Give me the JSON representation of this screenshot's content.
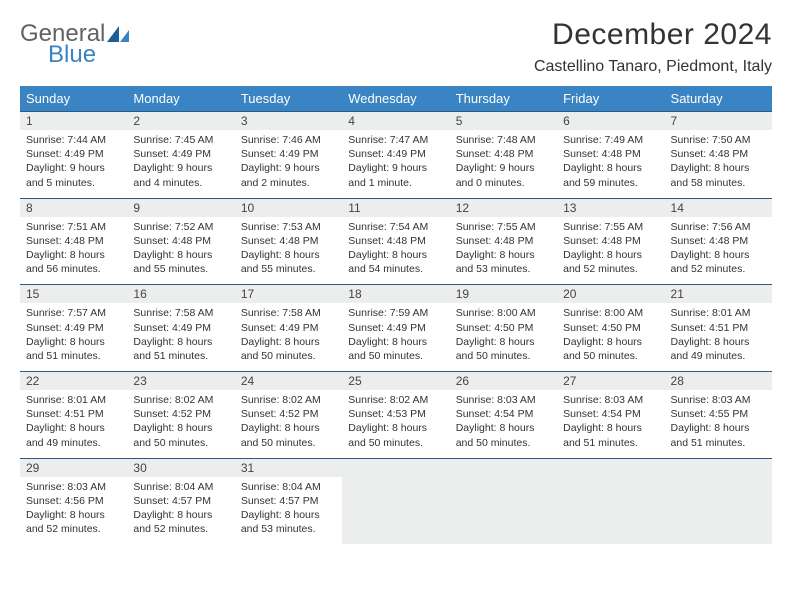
{
  "logo": {
    "word1": "General",
    "word2": "Blue"
  },
  "header": {
    "title": "December 2024",
    "location": "Castellino Tanaro, Piedmont, Italy"
  },
  "calendar": {
    "type": "table",
    "columns": [
      "Sunday",
      "Monday",
      "Tuesday",
      "Wednesday",
      "Thursday",
      "Friday",
      "Saturday"
    ],
    "header_bg": "#3a84c4",
    "header_fg": "#ffffff",
    "daynum_bg": "#eceded",
    "rule_color": "#2b5b82",
    "text_color": "#333333",
    "font_size_body": 10.5,
    "font_size_header": 13,
    "weeks": [
      [
        {
          "n": "1",
          "sunrise": "7:44 AM",
          "sunset": "4:49 PM",
          "dl": "9 hours and 5 minutes."
        },
        {
          "n": "2",
          "sunrise": "7:45 AM",
          "sunset": "4:49 PM",
          "dl": "9 hours and 4 minutes."
        },
        {
          "n": "3",
          "sunrise": "7:46 AM",
          "sunset": "4:49 PM",
          "dl": "9 hours and 2 minutes."
        },
        {
          "n": "4",
          "sunrise": "7:47 AM",
          "sunset": "4:49 PM",
          "dl": "9 hours and 1 minute."
        },
        {
          "n": "5",
          "sunrise": "7:48 AM",
          "sunset": "4:48 PM",
          "dl": "9 hours and 0 minutes."
        },
        {
          "n": "6",
          "sunrise": "7:49 AM",
          "sunset": "4:48 PM",
          "dl": "8 hours and 59 minutes."
        },
        {
          "n": "7",
          "sunrise": "7:50 AM",
          "sunset": "4:48 PM",
          "dl": "8 hours and 58 minutes."
        }
      ],
      [
        {
          "n": "8",
          "sunrise": "7:51 AM",
          "sunset": "4:48 PM",
          "dl": "8 hours and 56 minutes."
        },
        {
          "n": "9",
          "sunrise": "7:52 AM",
          "sunset": "4:48 PM",
          "dl": "8 hours and 55 minutes."
        },
        {
          "n": "10",
          "sunrise": "7:53 AM",
          "sunset": "4:48 PM",
          "dl": "8 hours and 55 minutes."
        },
        {
          "n": "11",
          "sunrise": "7:54 AM",
          "sunset": "4:48 PM",
          "dl": "8 hours and 54 minutes."
        },
        {
          "n": "12",
          "sunrise": "7:55 AM",
          "sunset": "4:48 PM",
          "dl": "8 hours and 53 minutes."
        },
        {
          "n": "13",
          "sunrise": "7:55 AM",
          "sunset": "4:48 PM",
          "dl": "8 hours and 52 minutes."
        },
        {
          "n": "14",
          "sunrise": "7:56 AM",
          "sunset": "4:48 PM",
          "dl": "8 hours and 52 minutes."
        }
      ],
      [
        {
          "n": "15",
          "sunrise": "7:57 AM",
          "sunset": "4:49 PM",
          "dl": "8 hours and 51 minutes."
        },
        {
          "n": "16",
          "sunrise": "7:58 AM",
          "sunset": "4:49 PM",
          "dl": "8 hours and 51 minutes."
        },
        {
          "n": "17",
          "sunrise": "7:58 AM",
          "sunset": "4:49 PM",
          "dl": "8 hours and 50 minutes."
        },
        {
          "n": "18",
          "sunrise": "7:59 AM",
          "sunset": "4:49 PM",
          "dl": "8 hours and 50 minutes."
        },
        {
          "n": "19",
          "sunrise": "8:00 AM",
          "sunset": "4:50 PM",
          "dl": "8 hours and 50 minutes."
        },
        {
          "n": "20",
          "sunrise": "8:00 AM",
          "sunset": "4:50 PM",
          "dl": "8 hours and 50 minutes."
        },
        {
          "n": "21",
          "sunrise": "8:01 AM",
          "sunset": "4:51 PM",
          "dl": "8 hours and 49 minutes."
        }
      ],
      [
        {
          "n": "22",
          "sunrise": "8:01 AM",
          "sunset": "4:51 PM",
          "dl": "8 hours and 49 minutes."
        },
        {
          "n": "23",
          "sunrise": "8:02 AM",
          "sunset": "4:52 PM",
          "dl": "8 hours and 50 minutes."
        },
        {
          "n": "24",
          "sunrise": "8:02 AM",
          "sunset": "4:52 PM",
          "dl": "8 hours and 50 minutes."
        },
        {
          "n": "25",
          "sunrise": "8:02 AM",
          "sunset": "4:53 PM",
          "dl": "8 hours and 50 minutes."
        },
        {
          "n": "26",
          "sunrise": "8:03 AM",
          "sunset": "4:54 PM",
          "dl": "8 hours and 50 minutes."
        },
        {
          "n": "27",
          "sunrise": "8:03 AM",
          "sunset": "4:54 PM",
          "dl": "8 hours and 51 minutes."
        },
        {
          "n": "28",
          "sunrise": "8:03 AM",
          "sunset": "4:55 PM",
          "dl": "8 hours and 51 minutes."
        }
      ],
      [
        {
          "n": "29",
          "sunrise": "8:03 AM",
          "sunset": "4:56 PM",
          "dl": "8 hours and 52 minutes."
        },
        {
          "n": "30",
          "sunrise": "8:04 AM",
          "sunset": "4:57 PM",
          "dl": "8 hours and 52 minutes."
        },
        {
          "n": "31",
          "sunrise": "8:04 AM",
          "sunset": "4:57 PM",
          "dl": "8 hours and 53 minutes."
        },
        null,
        null,
        null,
        null
      ]
    ],
    "labels": {
      "sunrise": "Sunrise:",
      "sunset": "Sunset:",
      "daylight": "Daylight:"
    }
  }
}
